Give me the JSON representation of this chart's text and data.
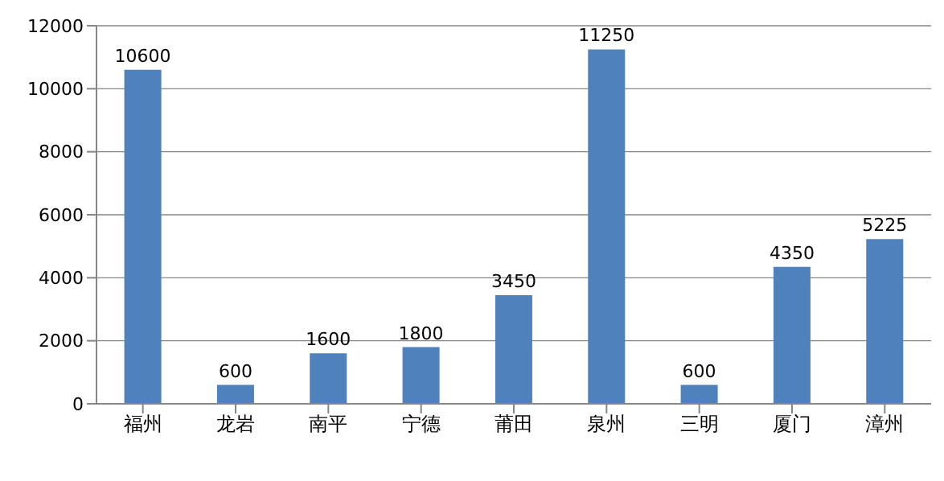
{
  "chart_data": {
    "type": "bar",
    "categories": [
      "福州",
      "龙岩",
      "南平",
      "宁德",
      "莆田",
      "泉州",
      "三明",
      "厦门",
      "漳州"
    ],
    "values": [
      10600,
      600,
      1600,
      1800,
      3450,
      11250,
      600,
      4350,
      5225
    ],
    "color": "#4f81bd",
    "ylim": [
      0,
      12000
    ],
    "yticks": [
      0,
      2000,
      4000,
      6000,
      8000,
      10000,
      12000
    ],
    "grid": "y",
    "data_labels": true
  }
}
